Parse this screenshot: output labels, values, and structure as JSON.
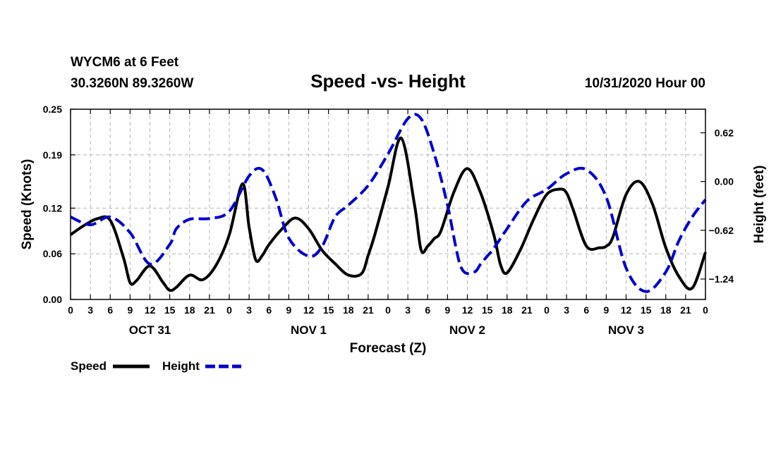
{
  "header": {
    "station": "WYCM6 at 6 Feet",
    "coords": "30.3260N 89.3260W",
    "date": "10/31/2020 Hour 00"
  },
  "chart_data": {
    "type": "line",
    "title": "Speed -vs- Height",
    "xlabel": "Forecast (Z)",
    "ylabel": "Speed (Knots)",
    "y2label": "Height (feet)",
    "xlim": [
      0,
      96
    ],
    "ylim": [
      0,
      0.25
    ],
    "y2lim": [
      -1.5,
      0.92
    ],
    "grid": true,
    "legend_position": "bottom-left",
    "x_tick_labels": [
      "0",
      "3",
      "6",
      "9",
      "12",
      "15",
      "18",
      "21",
      "0",
      "3",
      "6",
      "9",
      "12",
      "15",
      "18",
      "21",
      "0",
      "3",
      "6",
      "9",
      "12",
      "15",
      "18",
      "21",
      "0",
      "3",
      "6",
      "9",
      "12",
      "15",
      "18",
      "21",
      "0"
    ],
    "y_ticks": [
      0.0,
      0.06,
      0.12,
      0.19,
      0.25
    ],
    "y_tick_labels": [
      "0.00",
      "0.06",
      "0.12",
      "0.19",
      "0.25"
    ],
    "y2_ticks": [
      -1.24,
      -0.62,
      0.0,
      0.62
    ],
    "y2_tick_labels": [
      "−1.24",
      "−0.62",
      "0.00",
      "0.62"
    ],
    "day_labels": [
      {
        "hour": 12,
        "label": "OCT 31"
      },
      {
        "hour": 36,
        "label": "NOV 1"
      },
      {
        "hour": 60,
        "label": "NOV 2"
      },
      {
        "hour": 84,
        "label": "NOV 3"
      }
    ],
    "series": [
      {
        "name": "Speed",
        "axis": "left",
        "color": "#000000",
        "dash": "solid",
        "x": [
          0,
          2,
          4,
          6,
          8,
          9,
          10,
          12,
          14,
          15,
          16,
          18,
          20,
          22,
          24,
          26,
          27,
          28,
          29,
          30,
          32,
          34,
          36,
          38,
          40,
          42,
          44,
          45,
          46,
          48,
          50,
          52,
          53,
          54,
          55,
          56,
          58,
          60,
          62,
          64,
          65,
          66,
          68,
          70,
          72,
          74,
          75,
          76,
          78,
          80,
          81,
          82,
          84,
          86,
          88,
          90,
          92,
          94,
          96
        ],
        "values": [
          0.085,
          0.097,
          0.106,
          0.104,
          0.055,
          0.022,
          0.025,
          0.044,
          0.022,
          0.012,
          0.016,
          0.032,
          0.026,
          0.045,
          0.085,
          0.152,
          0.095,
          0.052,
          0.058,
          0.072,
          0.093,
          0.107,
          0.093,
          0.065,
          0.047,
          0.032,
          0.034,
          0.058,
          0.085,
          0.148,
          0.212,
          0.125,
          0.065,
          0.07,
          0.08,
          0.09,
          0.142,
          0.172,
          0.14,
          0.085,
          0.046,
          0.035,
          0.065,
          0.105,
          0.138,
          0.145,
          0.14,
          0.118,
          0.07,
          0.068,
          0.07,
          0.082,
          0.138,
          0.155,
          0.125,
          0.068,
          0.03,
          0.015,
          0.062
        ]
      },
      {
        "name": "Height",
        "axis": "right",
        "color": "#0000cc",
        "dash": "dashed",
        "x": [
          0,
          3,
          6,
          9,
          12,
          15,
          16,
          18,
          21,
          24,
          27,
          29,
          31,
          33,
          36,
          38,
          40,
          42,
          45,
          48,
          51,
          53,
          55,
          57,
          59,
          61,
          62,
          63,
          64,
          66,
          69,
          72,
          75,
          78,
          81,
          84,
          87,
          90,
          92,
          94,
          96
        ],
        "values": [
          -0.45,
          -0.55,
          -0.45,
          -0.65,
          -1.05,
          -0.8,
          -0.6,
          -0.48,
          -0.47,
          -0.38,
          0.07,
          0.15,
          -0.2,
          -0.72,
          -0.95,
          -0.83,
          -0.45,
          -0.3,
          -0.05,
          0.35,
          0.8,
          0.8,
          0.35,
          -0.3,
          -1.08,
          -1.15,
          -1.05,
          -0.95,
          -0.85,
          -0.6,
          -0.25,
          -0.1,
          0.1,
          0.15,
          -0.2,
          -1.1,
          -1.4,
          -1.15,
          -0.75,
          -0.45,
          -0.23
        ]
      }
    ]
  }
}
